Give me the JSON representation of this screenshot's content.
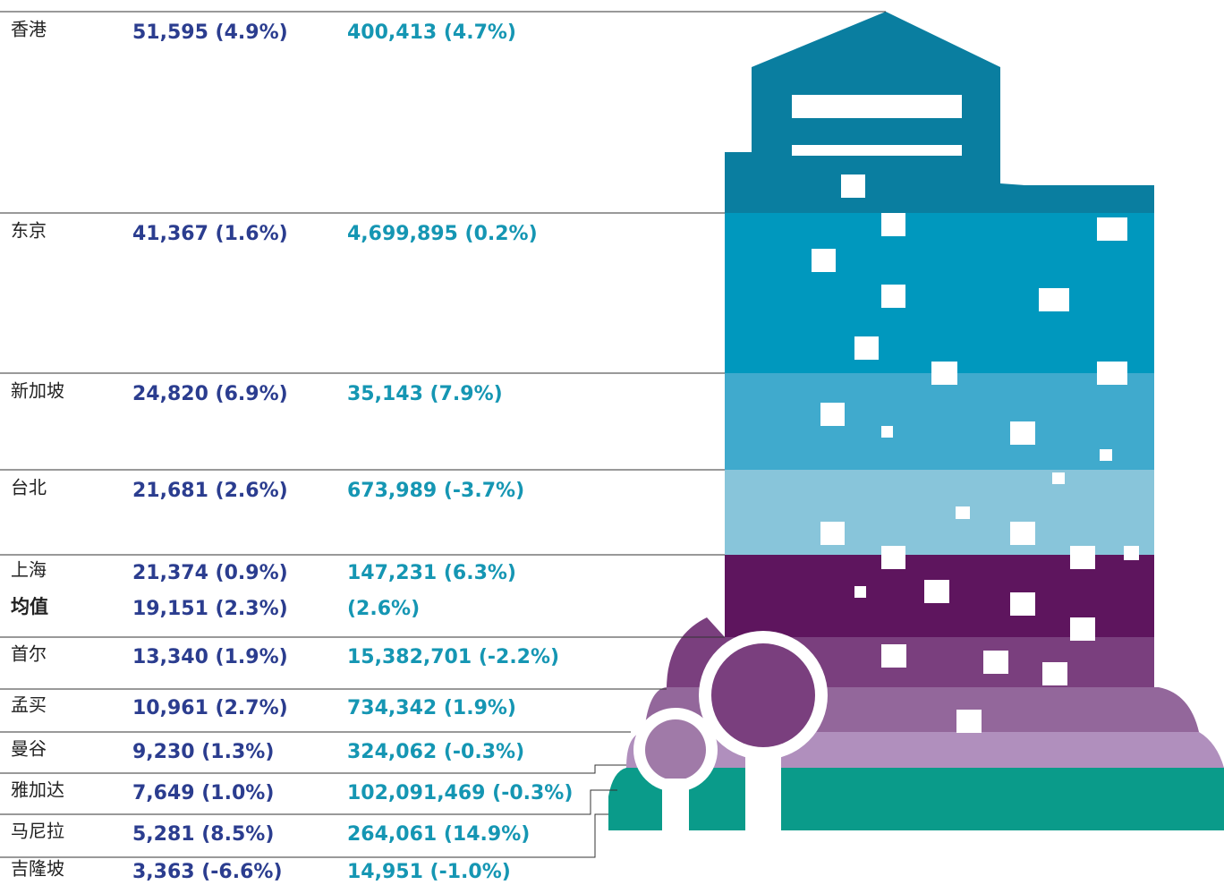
{
  "rows": [
    {
      "city": "香港",
      "value1": "51,595 (4.9%)",
      "value2": "400,413 (4.7%)"
    },
    {
      "city": "东京",
      "value1": "41,367 (1.6%)",
      "value2": "4,699,895 (0.2%)"
    },
    {
      "city": "新加坡",
      "value1": "24,820 (6.9%)",
      "value2": "35,143 (7.9%)"
    },
    {
      "city": "台北",
      "value1": "21,681 (2.6%)",
      "value2": "673,989 (-3.7%)"
    },
    {
      "city": "上海",
      "value1": "21,374 (0.9%)",
      "value2": "147,231 (6.3%)"
    },
    {
      "city": "首尔",
      "value1": "13,340 (1.9%)",
      "value2": "15,382,701 (-2.2%)"
    },
    {
      "city": "孟买",
      "value1": "10,961 (2.7%)",
      "value2": "734,342 (1.9%)"
    },
    {
      "city": "曼谷",
      "value1": "9,230 (1.3%)",
      "value2": "324,062 (-0.3%)"
    },
    {
      "city": "雅加达",
      "value1": "7,649 (1.0%)",
      "value2": "102,091,469 (-0.3%)"
    },
    {
      "city": "马尼拉",
      "value1": "5,281 (8.5%)",
      "value2": "264,061 (14.9%)"
    },
    {
      "city": "吉隆坡",
      "value1": "3,363 (-6.6%)",
      "value2": "14,951 (-1.0%)"
    }
  ],
  "average": {
    "label": "均值",
    "value1": "19,151 (2.3%)",
    "value2": "(2.6%)"
  }
}
